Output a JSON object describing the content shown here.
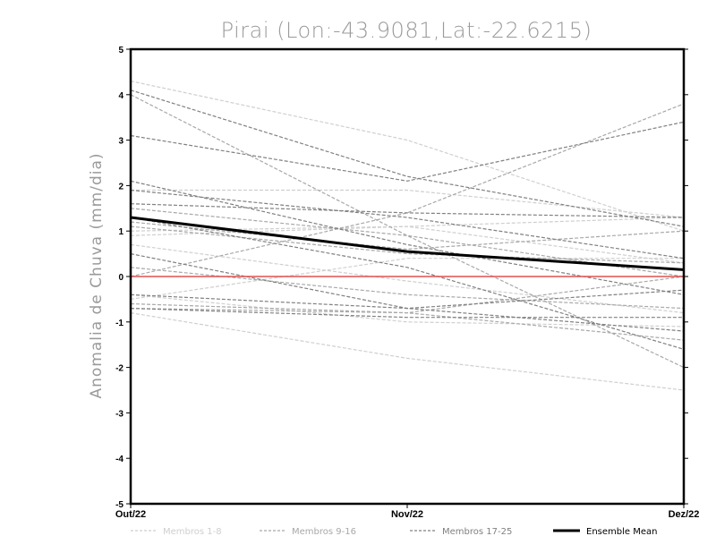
{
  "chart_data": {
    "type": "line",
    "title": "Pirai (Lon:-43.9081,Lat:-22.6215)",
    "ylabel": "Anomalia de Chuva (mm/dia)",
    "xlabel": "",
    "categories": [
      "Out/22",
      "Nov/22",
      "Dez/22"
    ],
    "ylim": [
      -5,
      5
    ],
    "yticks": [
      -5,
      -4,
      -3,
      -2,
      -1,
      0,
      1,
      2,
      3,
      4,
      5
    ],
    "grid": false,
    "zero_line_color": "#e05050",
    "legend_position": "bottom",
    "groups": [
      {
        "name": "Membros 1-8",
        "color": "#cfcfcf"
      },
      {
        "name": "Membros 9-16",
        "color": "#a8a8a8"
      },
      {
        "name": "Membros 17-25",
        "color": "#808080"
      },
      {
        "name": "Ensemble Mean",
        "color": "#000000"
      }
    ],
    "series": [
      {
        "group": 0,
        "values": [
          4.3,
          3.0,
          1.0
        ]
      },
      {
        "group": 0,
        "values": [
          1.9,
          1.9,
          1.3
        ]
      },
      {
        "group": 0,
        "values": [
          1.0,
          1.1,
          0.3
        ]
      },
      {
        "group": 0,
        "values": [
          0.9,
          1.1,
          1.3
        ]
      },
      {
        "group": 0,
        "values": [
          0.7,
          -0.1,
          -0.8
        ]
      },
      {
        "group": 0,
        "values": [
          -0.4,
          -1.0,
          -1.1
        ]
      },
      {
        "group": 0,
        "values": [
          -0.8,
          -1.8,
          -2.5
        ]
      },
      {
        "group": 0,
        "values": [
          -0.5,
          0.4,
          0.4
        ]
      },
      {
        "group": 1,
        "values": [
          4.0,
          0.9,
          -2.0
        ]
      },
      {
        "group": 1,
        "values": [
          0.0,
          1.4,
          3.8
        ]
      },
      {
        "group": 1,
        "values": [
          1.5,
          0.9,
          0.0
        ]
      },
      {
        "group": 1,
        "values": [
          -0.7,
          -0.8,
          0.0
        ]
      },
      {
        "group": 1,
        "values": [
          0.2,
          -0.4,
          -0.7
        ]
      },
      {
        "group": 1,
        "values": [
          1.2,
          0.6,
          1.0
        ]
      },
      {
        "group": 1,
        "values": [
          -0.6,
          -0.8,
          -1.4
        ]
      },
      {
        "group": 1,
        "values": [
          1.1,
          0.5,
          0.3
        ]
      },
      {
        "group": 2,
        "values": [
          4.1,
          2.2,
          1.1
        ]
      },
      {
        "group": 2,
        "values": [
          3.1,
          2.1,
          3.4
        ]
      },
      {
        "group": 2,
        "values": [
          2.1,
          0.7,
          -0.4
        ]
      },
      {
        "group": 2,
        "values": [
          1.9,
          1.3,
          0.4
        ]
      },
      {
        "group": 2,
        "values": [
          1.6,
          1.4,
          1.3
        ]
      },
      {
        "group": 2,
        "values": [
          1.3,
          0.2,
          -1.6
        ]
      },
      {
        "group": 2,
        "values": [
          0.5,
          -0.7,
          -0.3
        ]
      },
      {
        "group": 2,
        "values": [
          -0.7,
          -0.9,
          -0.9
        ]
      },
      {
        "group": 2,
        "values": [
          -0.4,
          -0.7,
          -1.2
        ]
      }
    ],
    "ensemble_mean": {
      "name": "Ensemble Mean",
      "values": [
        1.3,
        0.55,
        0.15
      ]
    }
  }
}
